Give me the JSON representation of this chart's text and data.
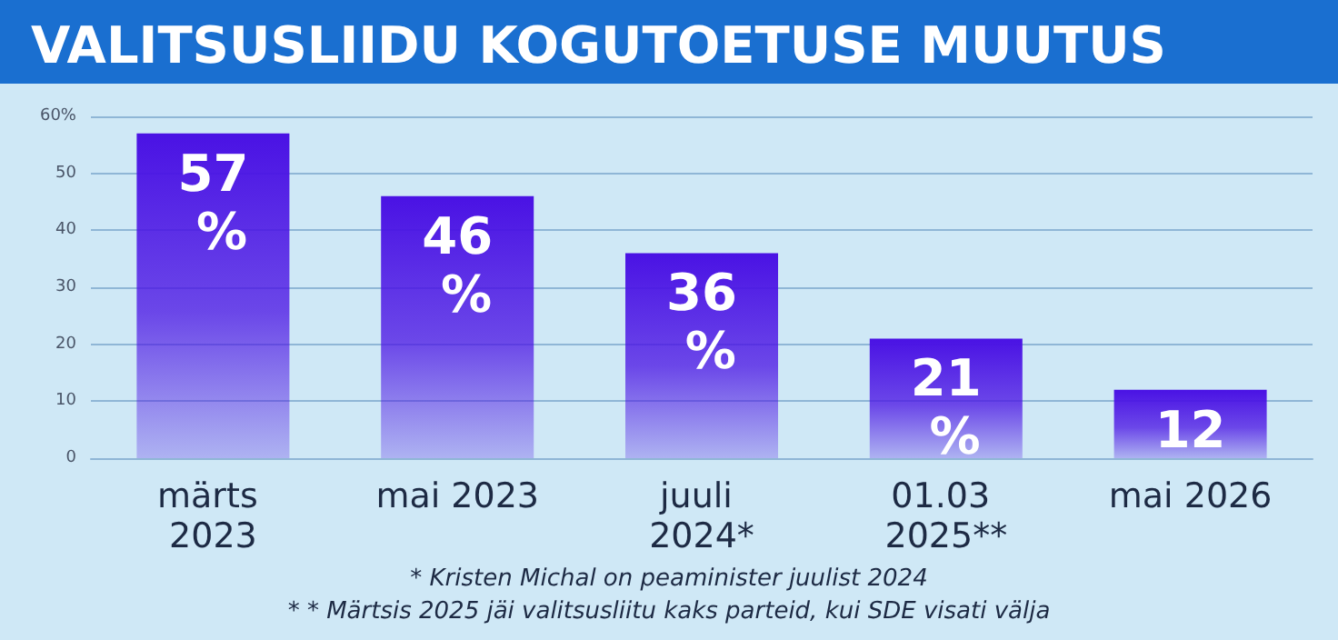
{
  "chart_data": {
    "type": "bar",
    "title": "VALITSUSLIIDU KOGUTOETUSE MUUTUS",
    "categories": [
      "märts 2023",
      "mai 2023",
      "juuli 2024*",
      "01.03 2025**",
      "mai 2026"
    ],
    "values": [
      57,
      46,
      36,
      21,
      12
    ],
    "value_labels": [
      "57 %",
      "46 %",
      "36 %",
      "21 %",
      "12"
    ],
    "color": "#4a12e4",
    "ylim": [
      0,
      60
    ],
    "yticks": [
      0,
      10,
      20,
      30,
      40,
      50,
      {
        "value": 60,
        "label": "60%"
      }
    ],
    "grid": "y",
    "annotations": [
      "* Kristen Michal on peaminister juulist 2024",
      "* * Märtsis 2025 jäi valitsusliitu kaks parteid, kui SDE visati välja"
    ]
  }
}
